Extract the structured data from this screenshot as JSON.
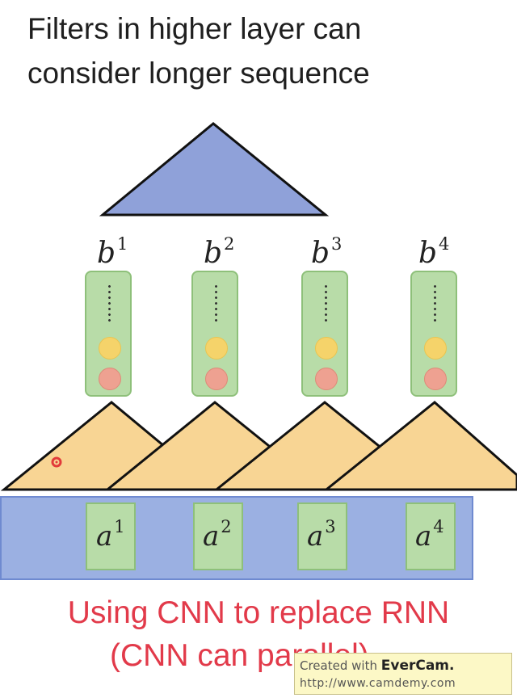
{
  "title": {
    "line1": "Filters in higher layer can",
    "line2": "consider longer sequence"
  },
  "outputs": [
    {
      "base": "b",
      "sup": "1"
    },
    {
      "base": "b",
      "sup": "2"
    },
    {
      "base": "b",
      "sup": "3"
    },
    {
      "base": "b",
      "sup": "4"
    }
  ],
  "inputs": [
    {
      "base": "a",
      "sup": "1"
    },
    {
      "base": "a",
      "sup": "2"
    },
    {
      "base": "a",
      "sup": "3"
    },
    {
      "base": "a",
      "sup": "4"
    }
  ],
  "caption": {
    "line1": "Using CNN to replace RNN",
    "line2": "(CNN can parallel)"
  },
  "watermark": {
    "prefix": "Created with",
    "brand": "EverCam.",
    "url": "http://www.camdemy.com"
  },
  "colors": {
    "top_filter": "#8fa1d9",
    "filters": "#f8d594",
    "vector_bg": "#b8dca8",
    "input_bar": "#9bb0e2",
    "caption": "#e23a4a"
  }
}
